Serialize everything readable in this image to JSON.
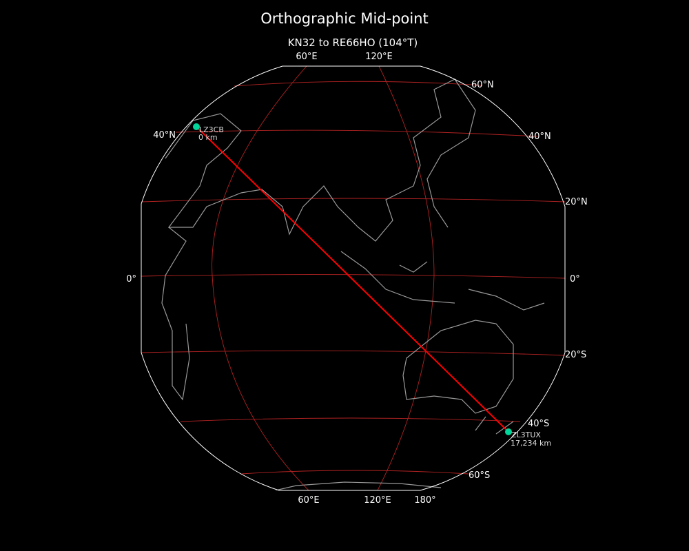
{
  "title": "Orthographic Mid-point",
  "subtitle": "KN32 to RE66HO (104°T)",
  "colors": {
    "background": "#000000",
    "graticule": "#b22222",
    "path": "#ff0000",
    "station": "#00d69a",
    "coast": "#999999",
    "outline": "#ffffff"
  },
  "labels": {
    "top_lon": [
      "60°E",
      "120°E"
    ],
    "bottom_lon": [
      "60°E",
      "120°E",
      "180°"
    ],
    "left_lat": [
      "40°N",
      "0°"
    ],
    "right_lat": [
      "60°N",
      "40°N",
      "20°N",
      "0°",
      "20°S",
      "40°S",
      "60°S"
    ]
  },
  "stations": [
    {
      "call": "LZ3CB",
      "distance": "0 km"
    },
    {
      "call": "ZL3TUX",
      "distance": "17,234 km"
    }
  ]
}
